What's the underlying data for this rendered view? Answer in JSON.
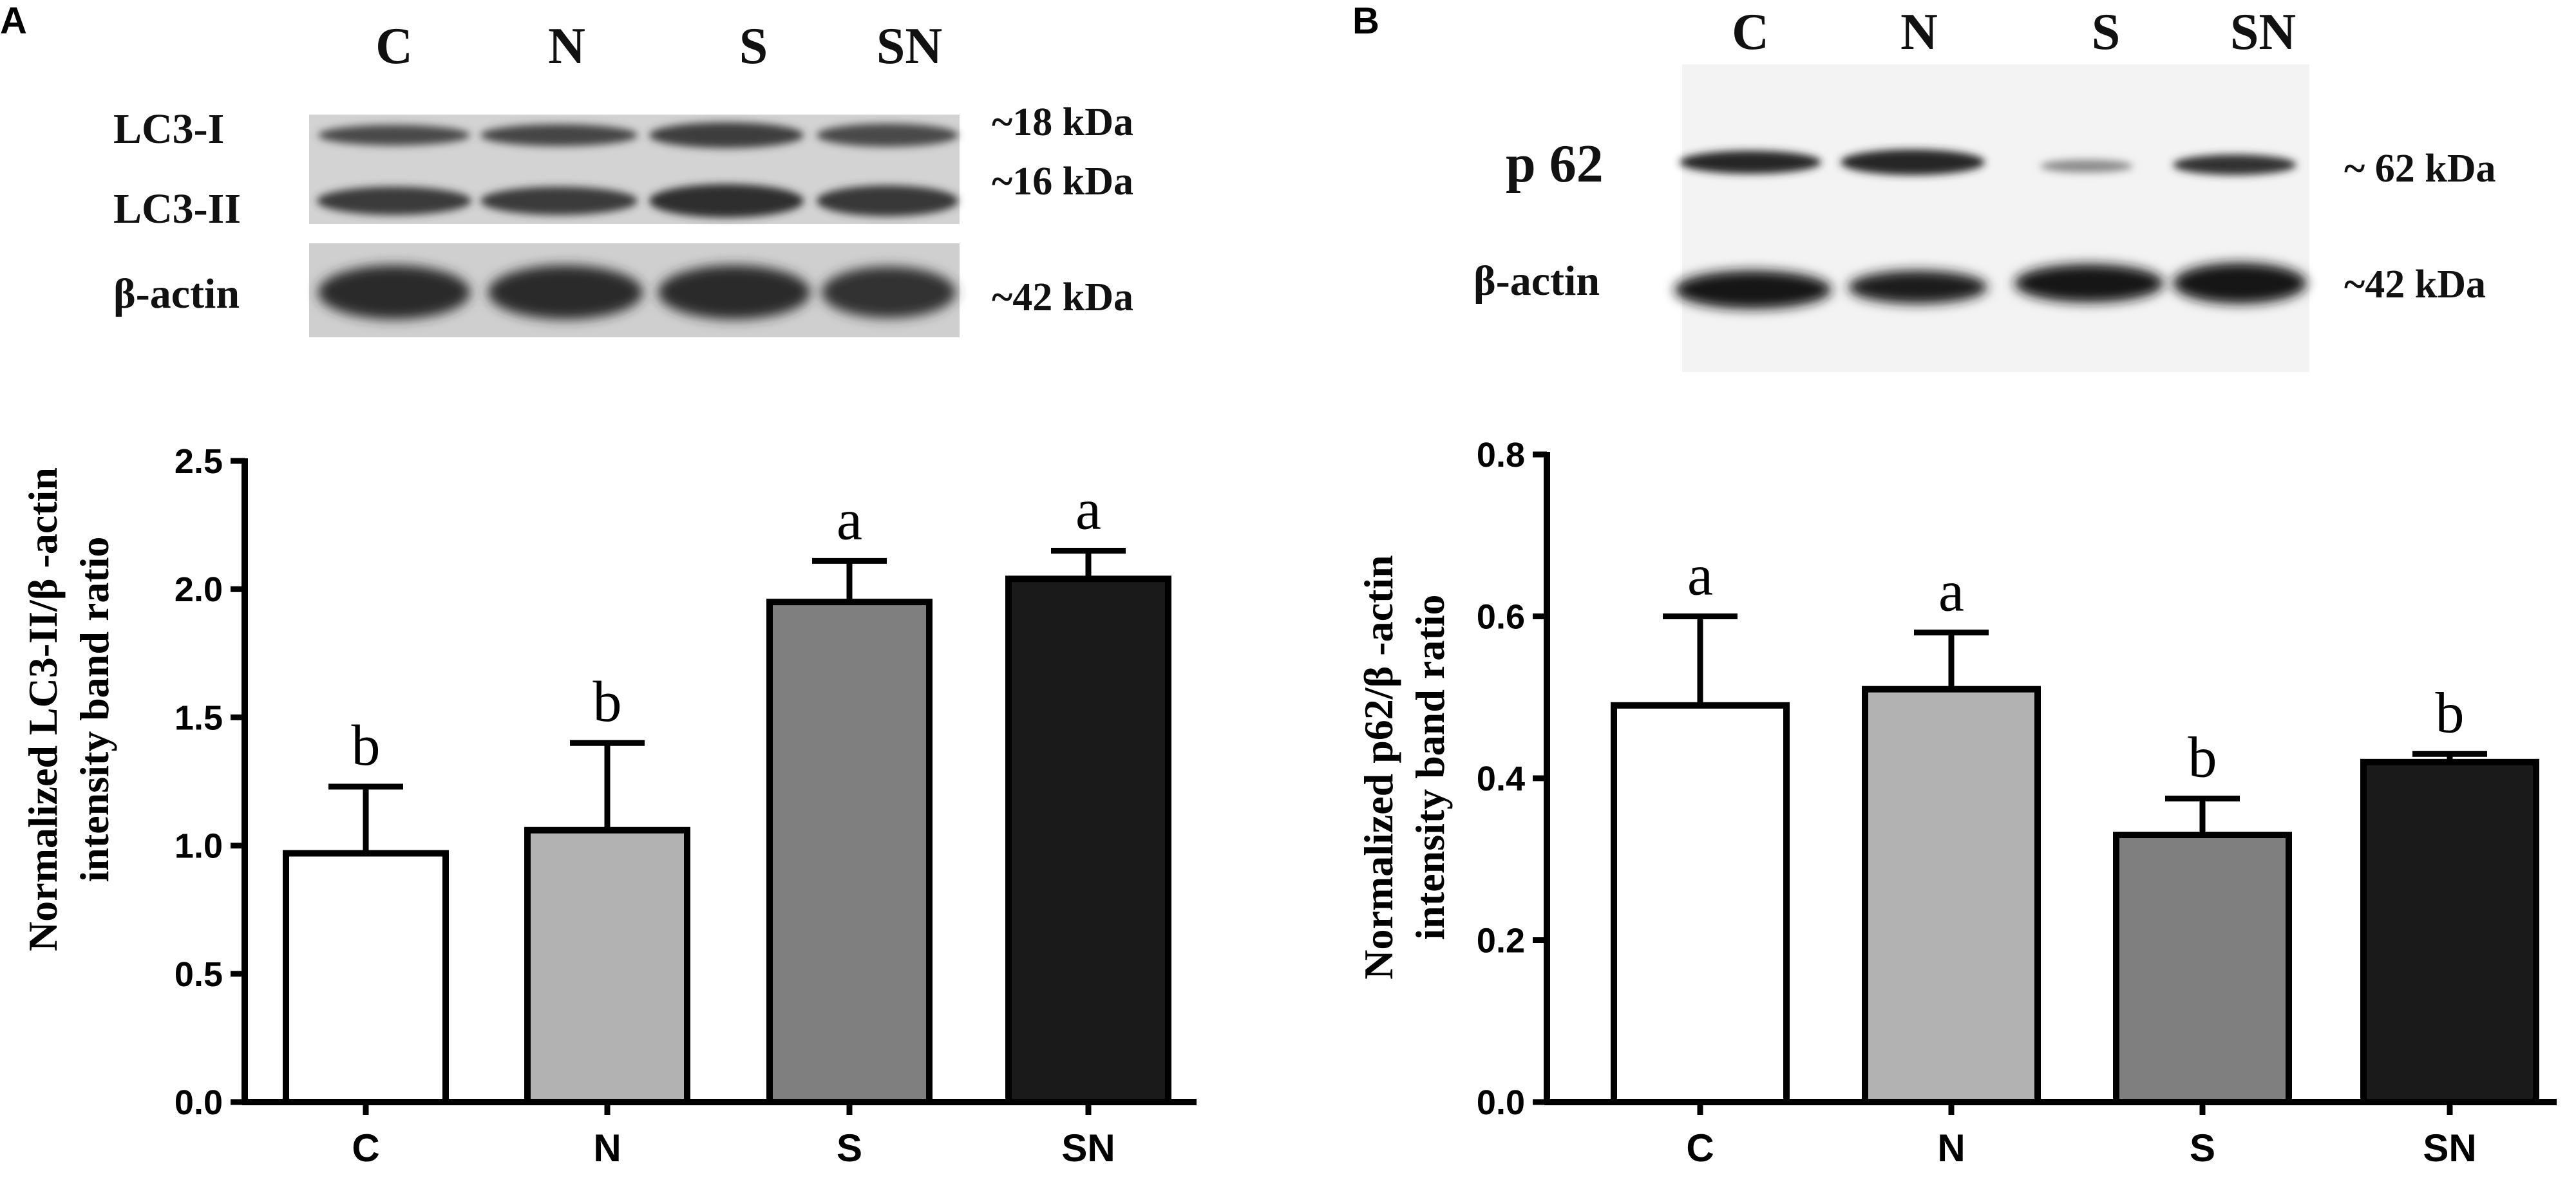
{
  "panels": {
    "a": {
      "letter": "A",
      "blot": {
        "lanes": [
          "C",
          "N",
          "S",
          "SN"
        ],
        "band_labels": [
          "LC3-I",
          "LC3-II",
          "β-actin"
        ],
        "mw_labels": [
          "~18 kDa",
          "~16 kDa",
          "~42 kDa"
        ]
      }
    },
    "b": {
      "letter": "B",
      "blot": {
        "lanes": [
          "C",
          "N",
          "S",
          "SN"
        ],
        "band_labels": [
          "p 62",
          "β-actin"
        ],
        "mw_labels": [
          "~ 62 kDa",
          "~42 kDa"
        ]
      }
    }
  },
  "chart_data": [
    {
      "type": "bar",
      "categories": [
        "C",
        "N",
        "S",
        "SN"
      ],
      "values": [
        0.97,
        1.06,
        1.95,
        2.04
      ],
      "errors": [
        0.26,
        0.34,
        0.16,
        0.11
      ],
      "significance": [
        "b",
        "b",
        "a",
        "a"
      ],
      "bar_colors": [
        "#ffffff",
        "#b2b2b2",
        "#7f7f7f",
        "#1a1a1a"
      ],
      "ylim": [
        0,
        2.5
      ],
      "yticks": [
        "0.0",
        "0.5",
        "1.0",
        "1.5",
        "2.0",
        "2.5"
      ],
      "ylabel_lines": [
        "Normalized LC3-II/β -actin",
        "intensity band ratio"
      ],
      "xlabel": "",
      "grid": false
    },
    {
      "type": "bar",
      "categories": [
        "C",
        "N",
        "S",
        "SN"
      ],
      "values": [
        0.49,
        0.51,
        0.33,
        0.42
      ],
      "errors": [
        0.11,
        0.07,
        0.045,
        0.01
      ],
      "significance": [
        "a",
        "a",
        "b",
        "b"
      ],
      "bar_colors": [
        "#ffffff",
        "#b2b2b2",
        "#7f7f7f",
        "#1a1a1a"
      ],
      "ylim": [
        0,
        0.8
      ],
      "yticks": [
        "0.0",
        "0.2",
        "0.4",
        "0.6",
        "0.8"
      ],
      "ylabel_lines": [
        "Normalized p62/β -actin",
        "intensity band ratio"
      ],
      "xlabel": "",
      "grid": false
    }
  ]
}
